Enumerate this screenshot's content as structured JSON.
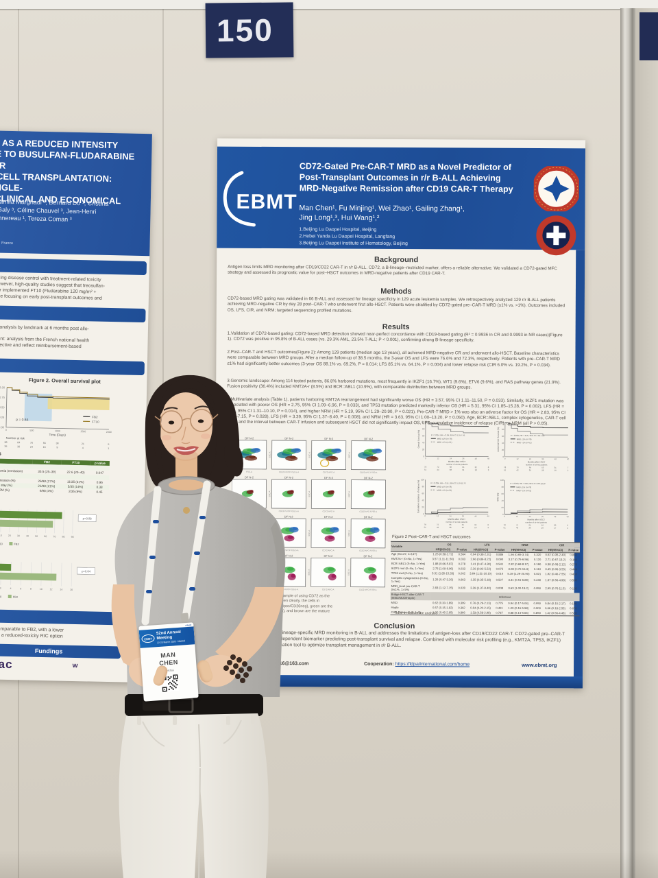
{
  "scene": {
    "placard_number": "150",
    "colors": {
      "poster_blue": "#1f4e96",
      "placard_navy": "#232e57",
      "wall": "#dcd6cb",
      "paper": "#f4f1ea",
      "table_green": "#4e7a30",
      "bar_green_dark": "#5f8f3a",
      "bar_green_light": "#9cb97f",
      "skin": "#ecc9ab",
      "hair": "#2b211d",
      "sweater_gray": "#b9b7b3",
      "pants_white": "#ece9e2",
      "logo_red": "#c0392b"
    }
  },
  "left_poster": {
    "title": "NE AS A REDUCED INTENSITY\nIVE TO BUSULFAN-FLUDARABINE FOR\nM CELL TRANSPLANTATION: SINGLE-\nE CLINICAL AND ECONOMICAL\nS",
    "authors": "s ², Jamila Marghadi ³, Bernard Do ¹, Cristina\nDel-Galy ³, Céline Chauvel ³, Jean-Henri\nne Annereau ¹, Tereza Coman ³",
    "affiliations": "France\nl, France\n, Villejuif, France",
    "intro_text": "by balancing disease control with treatment-related toxicity\nomes. However, high-quality studies suggest that treosulfan-\nour center implemented FT10 (Fludarabine 120 mg/m² +\nexperience focusing on early post-transplant outcomes and",
    "methods_text_1": "utcomes: analysis by landmark at 6 months post allo-",
    "methods_text_2": "assessment: analysis from the French national health\nnce perspective and reflect reimbursement-based\nr charges",
    "figure_caption": "Figure 2. Overall survival plot",
    "costs_header": "tion costs",
    "costs_table": {
      "columns": [
        "",
        "FB2",
        "FT10",
        "p value"
      ],
      "rows": [
        [
          "span",
          "Indication"
        ],
        [
          "Acute leukemia (remission)",
          "30.5 (25–39)",
          "22.6 (20–40)",
          "0.047"
        ],
        [
          "span",
          "At 6 months"
        ],
        [
          "Readmission (%)",
          "26/98 (27%)",
          "11/35 (31%)",
          "0.96"
        ],
        [
          "ICU stay (%)",
          "21/98 (21%)",
          "5/35 (14%)",
          "0.38"
        ],
        [
          "TRM (%)",
          "4/98 (4%)",
          "2/35 (6%)",
          "0.45"
        ]
      ]
    },
    "conclusion_text": "outcomes comparable to FB2, with a lower\ne of FT10 as a reduced-toxicity RIC option",
    "fundings_label": "Fundings",
    "sponsor": "medac",
    "sponsor_right": "w"
  },
  "right_poster": {
    "logo": "EBMT",
    "title": "CD72-Gated Pre-CAR-T MRD as a Novel Predictor of Post-Transplant Outcomes in r/r B-ALL Achieving MRD-Negative Remission after CD19 CAR-T Therapy",
    "authors": "Man Chen¹,  Fu Minjing¹,  Wei Zhao¹,  Gailing Zhang¹,\nJing Long¹,³,  Hui Wang¹,²",
    "affiliations": "1.Beijing Lu Daopei Hospital, Beijing\n2.Hebei Yanda Lu Daopei Hospital, Langfang\n3.Beijing Lu Daopei Institute of Hematology, Beijing",
    "background_heading": "Background",
    "background_text": "Antigen loss limits MRD monitoring after CD19/CD22 CAR-T in r/r B-ALL. CD72, a B-lineage–restricted marker, offers a reliable alternative. We validated a CD72-gated MFC strategy and assessed its prognostic value for post–HSCT outcomes in MRD-negative patients after CD19 CAR-T.",
    "methods_heading": "Methods",
    "methods_text": "CD72-based MRD gating was validated in 66 B-ALL and assessed for lineage specificity in 129 acute leukemia samples. We retrospectively analyzed 129 r/r B-ALL patients achieving MRD-negative CR by day 28 post–CAR-T who underwent first allo-HSCT. Patients were stratified by CD72-gated pre–CAR-T MRD (≤1% vs. >1%). Outcomes included OS, LFS, CIR, and NRM; targeted sequencing profiled mutations.",
    "results_heading": "Results",
    "results_p1": "1.Validation of CD72-based gating: CD72-based MRD detection showed near-perfect concordance with CD19-based gating (R² = 0.9936 in CR and 0.9993 in NR cases)(Figure 1). CD72 was positive in 95.8% of B-ALL cases (vs. 29.3% AML, 23.5% T-ALL; P < 0.001), confirming strong B-lineage specificity.",
    "results_p2": "2.Post–CAR-T and HSCT outcomes(Figure 2): Among 129 patients (median age 13 years), all achieved MRD-negative CR and underwent allo-HSCT. Baseline characteristics were comparable between MRD groups. After a median follow-up of 38.5 months, the 3-year OS and LFS were 76.6% and 72.3%, respectively. Patients with pre–CAR-T MRD ≤1% had significantly better outcomes (3-year OS 88.1% vs. 69.2%, P = 0.014; LFS 85.1% vs. 64.1%, P = 0.004) and lower relapse risk (CIR 6.0% vs. 19.2%, P = 0.034).",
    "results_p3": "3.Genomic landscape: Among 114 tested patients, 86.8% harbored mutations, most frequently in IKZF1 (16.7%), WT1 (9.6%), ETV6 (9.6%), and RAS pathway genes (21.9%). Fusion positivity (36.4%) included KMT2A-r (8.5%) and BCR::ABL1 (10.9%), with comparable distribution between MRD groups.",
    "results_p4": "4.Multivariate analysis (Table 1), patients harboring KMT2A rearrangement had significantly worse OS (HR = 3.57, 95% CI 1.11–11.50, P = 0.033). Similarly, IKZF1 mutation was associated with poorer OS (HR = 2.75, 95% CI 1.09–6.96, P = 0.033), and TP53 mutation predicted markedly inferior OS (HR = 5.31, 95% CI 1.85–15.28, P = 0.002), LFS (HR = 3.64, 95% CI 1.31–10.10, P = 0.014), and higher NRM (HR = 5.19, 95% CI 1.29–20.90, P = 0.021). Pre-CAR-T MRD > 1% was also an adverse factor for OS (HR = 2.83, 95% CI 1.12–7.15, P = 0.028), LFS (HR = 3.39, 95% CI 1.37–8.40, P = 0.008), and NRM (HR = 3.63, 95% CI 1.00–13.20, P = 0.050). Age, BCR::ABL1, complex cytogenetics, CAR-T cell dose, and the interval between CAR-T infusion and subsequent HSCT did not significantly impact OS, LFS, cumulative incidence of relapse (CIR), or NRM (all P > 0.05).",
    "figure1_caption": "from the same sample of  using CD72 as the\ngate could be seen clearly, the cells in\n(CD10pos/CD38pos/CD20neg), green are the\nCD20neg to dim), and brown are the mature",
    "figure2_caption": "Figure 2 Post–CAR-T and HSCT outcomes",
    "outcomes_table": {
      "groups": [
        "OS",
        "LFS",
        "NRM",
        "CIR"
      ],
      "sub_columns": [
        "HR(95%CI)",
        "P-value"
      ],
      "variable_header": "Variable",
      "rows": [
        [
          "Age (0≤14Y, 1>14Y)",
          "1.26 (0.58-2.72)",
          "0.564",
          "0.94 (0.38-2.31)",
          "0.886",
          "1.56 (0.65-3.74)",
          "0.320",
          "0.92 (0.35-2.40)",
          "0.861"
        ],
        [
          "KMT2A-r (0=No, 1=Yes)",
          "3.57 (1.11-11.50)",
          "0.033",
          "2.66 (0.86-8.22)",
          "0.090",
          "3.17 (0.75-6.56)",
          "0.120",
          "2.71 (0.67-13.2)",
          "0.160"
        ],
        [
          "BCR::ABL1 (0=No, 1=Yes)",
          "1.88 (0.66-5.87)",
          "0.278",
          "1.41 (0.47-4.30)",
          "0.541",
          "2.32 (0.68-8.17)",
          "0.180",
          "0.38 (0.08-2.12)",
          "0.270"
        ],
        [
          "IKZF1 mut (0=No, 1=Yes)",
          "2.75 (1.09-6.96)",
          "0.033",
          "2.26 (0.92-5.52)",
          "0.075",
          "3.08 (0.76-16.3)",
          "0.110",
          "0.45 (0.06-3.55)",
          "0.449"
        ],
        [
          "TP53 mut (0=No, 1=Yes)",
          "5.31 (1.85-15.28)",
          "0.002",
          "3.64 (1.31-10.10)",
          "0.014",
          "5.19 (1.29-20.90)",
          "0.021",
          "1.92 (0.40-7.55)",
          "0.410"
        ],
        [
          "Complex cytogenetics (0=No, 1=Yes)",
          "1.26 (0.47-3.26)",
          "0.663",
          "1.35 (0.35-5.18)",
          "0.527",
          "3.41 (0.51-6.89)",
          "0.430",
          "1.37 (0.56-4.98)",
          "0.590"
        ],
        [
          "MRD_level pre-CAR-T (0≤1%, 1>1%)",
          "2.83 (1.12-7.15)",
          "0.028",
          "3.39 (1.37-8.40)",
          "0.008",
          "3.63 (1.00-13.2)",
          "0.050",
          "2.95 (0.76-11.5)",
          "0.120"
        ],
        [
          "Bridge HSCT after CAR-T (MSD/MUD/Haplo)",
          "reference"
        ],
        [
          "MSD",
          "0.62 (0.30-1.89)",
          "0.399",
          "0.76 (0.26-2.13)",
          "0.775",
          "0.94 (0.17-5.04)",
          "0.950",
          "0.84 (0.15-2.17)",
          "0.150"
        ],
        [
          "Haplo",
          "0.57 (0.15-1.92)",
          "0.362",
          "0.64 (0.20-2.15)",
          "0.491",
          "1.09 (0.16-5.58)",
          "0.900",
          "0.66 (0.18-2.55)",
          "0.670"
        ],
        [
          "CAR-T dose (0≤3, 1>3)",
          "1.02 (0.45-2.95)",
          "0.866",
          "1.33 (0.58-2.98)",
          "0.787",
          "0.88 (0.14-5.63)",
          "0.850",
          "1.42 (0.56-4.48)",
          "0.520"
        ]
      ],
      "caption": "Table 1 multivariate analysis"
    },
    "conclusion_heading": "Conclusion",
    "conclusion_text": "CD72-gated MFC enables lineage-specific MRD monitoring in B-ALL and addresses the limitations of antigen-loss after CD19/CD22 CAR-T. CD72-gated pre–CAR-T MRD serves as a novel, independent biomarker predicting post-transplant survival and relapse. Combined with molecular risk profiling (e.g., KMT2A, TP53, IKZF1) provides a powerful stratification tool to optimize transplant management in r/r B-ALL.",
    "footer": {
      "email": "Email:cmym20140716@163.com",
      "cooperation_label": "Cooperation:",
      "cooperation_url": "https://ldpaiinternational.com/home",
      "website": "www.ebmt.org"
    }
  },
  "badge": {
    "logo": "EBMT",
    "meeting": "52nd Annual Meeting",
    "dates": "22-25 March 2026 · Madrid",
    "name": "MAN\nCHEN",
    "country": "CHINA"
  },
  "chart_data": [
    {
      "id": "left_os",
      "type": "line",
      "title": "Figure 2. Overall survival plot",
      "xlabel": "Time (Days)",
      "ylabel": "Overall survival probability",
      "p_label": "p = 0.64",
      "xlim": [
        0,
        2000
      ],
      "ylim": [
        0,
        1
      ],
      "legend": [
        "FB2",
        "FT10"
      ],
      "risk_title": "Number at risk",
      "series": [
        {
          "name": "FB2",
          "x": [
            0,
            100,
            250,
            400,
            600,
            900,
            2000
          ],
          "y": [
            1.0,
            0.93,
            0.86,
            0.8,
            0.77,
            0.76,
            0.76
          ]
        },
        {
          "name": "FT10",
          "x": [
            0,
            100,
            250,
            400,
            600,
            900,
            2000
          ],
          "y": [
            1.0,
            0.95,
            0.89,
            0.84,
            0.8,
            0.79,
            0.79
          ]
        }
      ],
      "risk": [
        [
          "98",
          "84",
          "70",
          "55",
          "38",
          "21",
          "5"
        ],
        [
          "35",
          "30",
          "24",
          "16",
          "9",
          "4",
          "1"
        ]
      ]
    },
    {
      "id": "flow_grid",
      "type": "scatter-grid",
      "panel_label": "DF N-2",
      "rows": 4,
      "cols": 4,
      "x_axes": [
        "FSC-A",
        "CD19 PerCP-Cy5.5-A",
        "CD72 APC-A",
        "CD22 APC-R700-A"
      ],
      "y_axis": "SSC-A"
    },
    {
      "id": "km_os",
      "type": "line",
      "ylabel": "Overall Survival (%)",
      "xlabel": "Months after HSCT",
      "annotation": "P = 0.014, HR = 3.04, 95% CI 1.25-7.41",
      "risk_label": "number of at-risk patients",
      "xlim": [
        0,
        60
      ],
      "ylim": [
        0,
        100
      ],
      "series": [
        {
          "name": "MRD ≤1% (n=78)",
          "x": [
            0,
            3,
            6,
            12,
            24,
            36,
            60
          ],
          "y": [
            100,
            97,
            95,
            92,
            89,
            88.1,
            88.1
          ]
        },
        {
          "name": "MRD >1% (n=51)",
          "x": [
            0,
            3,
            6,
            12,
            24,
            36,
            60
          ],
          "y": [
            100,
            94,
            87,
            79,
            72,
            69.2,
            69.2
          ]
        }
      ],
      "risk": [
        [
          "78",
          "72",
          "66",
          "55",
          "32",
          "8"
        ],
        [
          "51",
          "44",
          "38",
          "31",
          "18",
          "3"
        ]
      ]
    },
    {
      "id": "km_lfs",
      "type": "line",
      "ylabel": "Leukemia-free Survival (%)",
      "xlabel": "Months after HSCT",
      "annotation": "P = 0.004, HR = 3.25, 95% CI 1.40-7.54",
      "risk_label": "number of at-risk patients",
      "xlim": [
        0,
        60
      ],
      "ylim": [
        0,
        100
      ],
      "series": [
        {
          "name": "MRD ≤1% (n=78)",
          "x": [
            0,
            3,
            6,
            12,
            24,
            36,
            60
          ],
          "y": [
            100,
            96,
            93,
            89,
            86,
            85.1,
            85.1
          ]
        },
        {
          "name": "MRD >1% (n=51)",
          "x": [
            0,
            3,
            6,
            12,
            24,
            36,
            60
          ],
          "y": [
            100,
            92,
            83,
            74,
            67,
            64.1,
            64.1
          ]
        }
      ],
      "risk": [
        [
          "78",
          "70",
          "64",
          "53",
          "31",
          "7"
        ],
        [
          "51",
          "42",
          "35",
          "28",
          "16",
          "2"
        ]
      ]
    },
    {
      "id": "km_cir",
      "type": "line",
      "ylabel": "Cumulative incidence of relapse (%)",
      "xlabel": "Months after HSCT",
      "annotation": "P = 0.034, HR = 3.51, 95% CI 1.10-11.70",
      "risk_label": "number of at-risk patients",
      "xlim": [
        0,
        60
      ],
      "ylim": [
        0,
        100
      ],
      "series": [
        {
          "name": "MRD ≤1% (n=78)",
          "x": [
            0,
            6,
            12,
            24,
            36,
            60
          ],
          "y": [
            0,
            2,
            4,
            5,
            6.0,
            6.0
          ]
        },
        {
          "name": "MRD >1% (n=51)",
          "x": [
            0,
            6,
            12,
            24,
            36,
            60
          ],
          "y": [
            0,
            6,
            12,
            17,
            19.2,
            19.2
          ]
        }
      ],
      "risk": [
        [
          "78",
          "72",
          "66",
          "55",
          "32",
          "8"
        ],
        [
          "51",
          "44",
          "38",
          "31",
          "18",
          "3"
        ]
      ]
    },
    {
      "id": "km_nrm",
      "type": "line",
      "ylabel": "NRM (%)",
      "xlabel": "Months after HSCT",
      "annotation": "P = 0.050, HR = 3.63, 95% CI 1.00-13.20",
      "risk_label": "number of at-risk patients",
      "xlim": [
        0,
        60
      ],
      "ylim": [
        0,
        100
      ],
      "series": [
        {
          "name": "MRD ≤1% (n=78)",
          "x": [
            0,
            6,
            12,
            24,
            36,
            60
          ],
          "y": [
            0,
            3,
            5,
            7,
            8,
            8
          ]
        },
        {
          "name": "MRD >1% (n=51)",
          "x": [
            0,
            6,
            12,
            24,
            36,
            60
          ],
          "y": [
            0,
            5,
            10,
            14,
            16,
            16
          ]
        }
      ],
      "risk": [
        [
          "78",
          "71",
          "64",
          "52",
          "30",
          "6"
        ],
        [
          "51",
          "43",
          "36",
          "29",
          "17",
          "2"
        ]
      ]
    },
    {
      "id": "cost_bars_1",
      "type": "bar",
      "categories": [
        "FT10",
        "FB2"
      ],
      "values": [
        78,
        68
      ],
      "xlim": [
        0,
        90
      ],
      "ticks": [
        0,
        10,
        20,
        30,
        40,
        50,
        60,
        70,
        80,
        90
      ],
      "p_label": "p=0.98",
      "axis_label": "days alive out of hospital",
      "legend": [
        "FT10",
        "FB2"
      ]
    },
    {
      "id": "cost_bars_2",
      "type": "bar",
      "categories": [
        "FT10",
        "FB2"
      ],
      "values": [
        4,
        13
      ],
      "xlim": [
        0,
        16
      ],
      "ticks": [
        0,
        2,
        4,
        6,
        8,
        10,
        12,
        14,
        16
      ],
      "p_label": "p=0.04",
      "axis_label": "cost (k€)",
      "legend": [
        "FT10",
        "FB2"
      ]
    }
  ]
}
